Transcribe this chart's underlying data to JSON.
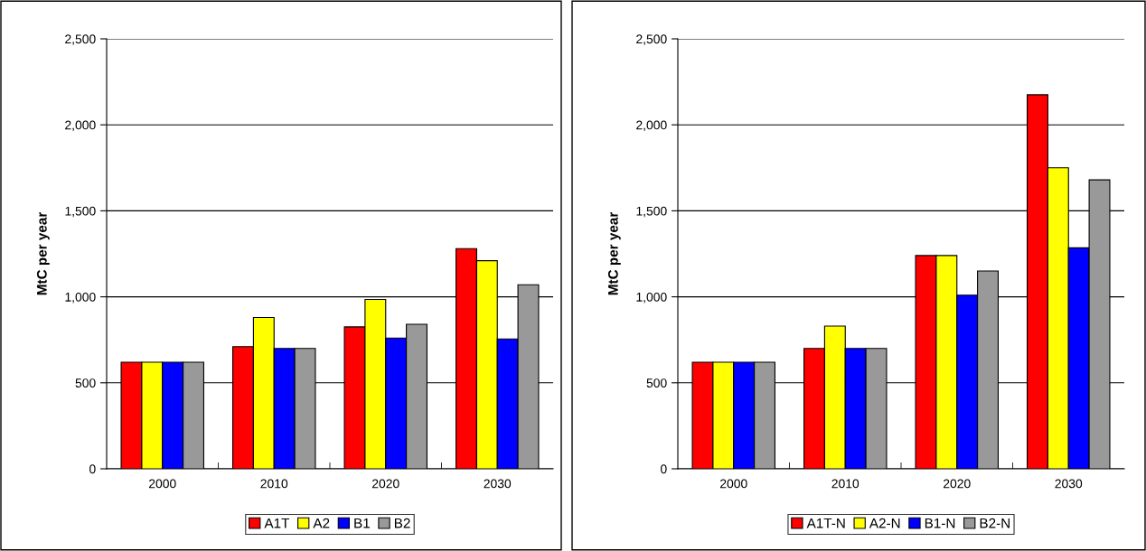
{
  "chart_data": [
    {
      "type": "bar",
      "ylabel": "MtC per year",
      "categories": [
        "2000",
        "2010",
        "2020",
        "2030"
      ],
      "ylim": [
        0,
        2500
      ],
      "yticks": [
        0,
        500,
        {
          "value": 1000,
          "label": "1,000"
        },
        {
          "value": 1500,
          "label": "1,500"
        },
        {
          "value": 2000,
          "label": "2,000"
        },
        {
          "value": 2500,
          "label": "2,500"
        }
      ],
      "grid": "y",
      "legend": "bottom",
      "series": [
        {
          "name": "A1T",
          "color": "#ff0000",
          "values": [
            620,
            710,
            825,
            1280
          ]
        },
        {
          "name": "A2",
          "color": "#ffff00",
          "values": [
            620,
            880,
            985,
            1210
          ]
        },
        {
          "name": "B1",
          "color": "#0000ff",
          "values": [
            620,
            700,
            760,
            755
          ]
        },
        {
          "name": "B2",
          "color": "#999999",
          "values": [
            620,
            700,
            840,
            1070
          ]
        }
      ]
    },
    {
      "type": "bar",
      "ylabel": "MtC per year",
      "categories": [
        "2000",
        "2010",
        "2020",
        "2030"
      ],
      "ylim": [
        0,
        2500
      ],
      "yticks": [
        0,
        500,
        {
          "value": 1000,
          "label": "1,000"
        },
        {
          "value": 1500,
          "label": "1,500"
        },
        {
          "value": 2000,
          "label": "2,000"
        },
        {
          "value": 2500,
          "label": "2,500"
        }
      ],
      "grid": "y",
      "legend": "bottom",
      "series": [
        {
          "name": "A1T-N",
          "color": "#ff0000",
          "values": [
            620,
            700,
            1240,
            2175
          ]
        },
        {
          "name": "A2-N",
          "color": "#ffff00",
          "values": [
            620,
            830,
            1240,
            1750
          ]
        },
        {
          "name": "B1-N",
          "color": "#0000ff",
          "values": [
            620,
            700,
            1010,
            1285
          ]
        },
        {
          "name": "B2-N",
          "color": "#999999",
          "values": [
            620,
            700,
            1150,
            1680
          ]
        }
      ]
    }
  ]
}
